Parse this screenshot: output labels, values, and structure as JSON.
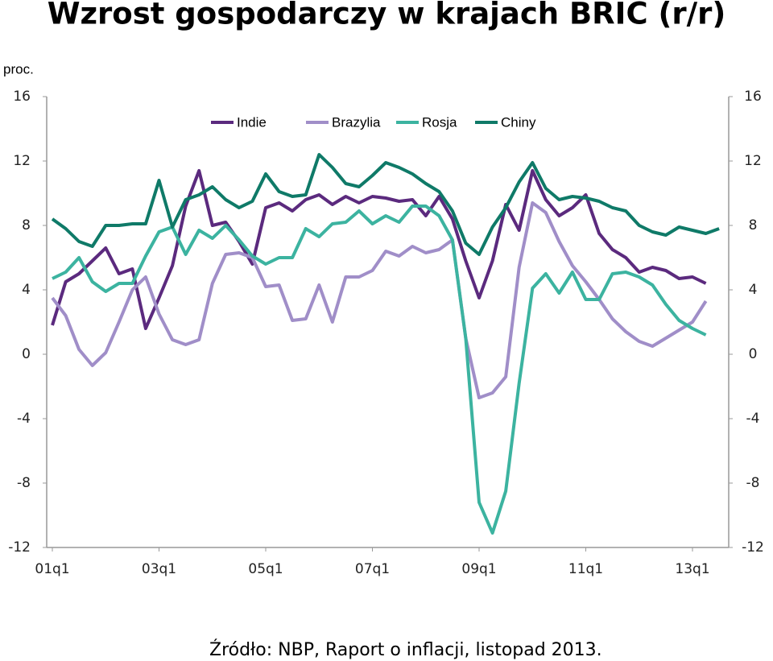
{
  "chart_data": {
    "type": "line",
    "title": "Wzrost gospodarczy w krajach BRIC (r/r)",
    "y_label": "proc.",
    "source": "Źródło: NBP, Raport o inflacji, listopad 2013.",
    "legend": "top",
    "categories": [
      "01q1",
      null,
      null,
      null,
      null,
      null,
      null,
      null,
      "03q1",
      null,
      null,
      null,
      null,
      null,
      null,
      null,
      "05q1",
      null,
      null,
      null,
      null,
      null,
      null,
      null,
      "07q1",
      null,
      null,
      null,
      null,
      null,
      null,
      null,
      "09q1",
      null,
      null,
      null,
      null,
      null,
      null,
      null,
      "11q1",
      null,
      null,
      null,
      null,
      null,
      null,
      null,
      "13q1",
      null,
      null
    ],
    "ylim": [
      -12,
      16
    ],
    "yticks": [
      -12,
      -8,
      -4,
      0,
      4,
      8,
      12,
      16
    ],
    "y2lim": [
      -12,
      16
    ],
    "y2ticks": [
      -12,
      -8,
      -4,
      0,
      4,
      8,
      12,
      16
    ],
    "series": [
      {
        "name": "Indie",
        "color": "#5b2a7e",
        "values": [
          1.8,
          4.5,
          5.0,
          5.8,
          6.6,
          5.0,
          5.3,
          1.6,
          3.5,
          5.5,
          9.2,
          11.4,
          8.0,
          8.2,
          7.0,
          5.6,
          9.1,
          9.4,
          8.9,
          9.6,
          9.9,
          9.3,
          9.8,
          9.4,
          9.8,
          9.7,
          9.5,
          9.6,
          8.6,
          9.8,
          8.4,
          5.8,
          3.5,
          5.8,
          9.3,
          7.7,
          11.4,
          9.6,
          8.6,
          9.1,
          9.9,
          7.5,
          6.5,
          6.0,
          5.1,
          5.4,
          5.2,
          4.7,
          4.8,
          4.4,
          null
        ]
      },
      {
        "name": "Brazylia",
        "color": "#a08ec8",
        "values": [
          3.5,
          2.4,
          0.3,
          -0.7,
          0.1,
          2.0,
          4.0,
          4.8,
          2.5,
          0.9,
          0.6,
          0.9,
          4.4,
          6.2,
          6.3,
          6.0,
          4.2,
          4.3,
          2.1,
          2.2,
          4.3,
          2.0,
          4.8,
          4.8,
          5.2,
          6.4,
          6.1,
          6.7,
          6.3,
          6.5,
          7.1,
          1.0,
          -2.7,
          -2.4,
          -1.4,
          5.4,
          9.4,
          8.8,
          7.0,
          5.5,
          4.5,
          3.4,
          2.2,
          1.4,
          0.8,
          0.5,
          1.0,
          1.5,
          2.0,
          3.3,
          null
        ]
      },
      {
        "name": "Rosja",
        "color": "#3cb3a0",
        "values": [
          4.7,
          5.1,
          6.0,
          4.5,
          3.9,
          4.4,
          4.4,
          6.1,
          7.6,
          7.9,
          6.2,
          7.7,
          7.2,
          8.0,
          7.1,
          6.1,
          5.6,
          6.0,
          6.0,
          7.8,
          7.3,
          8.1,
          8.2,
          8.9,
          8.1,
          8.6,
          8.2,
          9.2,
          9.2,
          8.6,
          7.1,
          1.0,
          -9.2,
          -11.1,
          -8.5,
          -1.8,
          4.1,
          5.0,
          3.8,
          5.1,
          3.4,
          3.4,
          5.0,
          5.1,
          4.8,
          4.3,
          3.1,
          2.1,
          1.6,
          1.2,
          null
        ]
      },
      {
        "name": "Chiny",
        "color": "#0f7a68",
        "values": [
          8.4,
          7.8,
          7.0,
          6.7,
          8.0,
          8.0,
          8.1,
          8.1,
          10.8,
          7.9,
          9.6,
          9.9,
          10.4,
          9.6,
          9.1,
          9.5,
          11.2,
          10.1,
          9.8,
          9.9,
          12.4,
          11.6,
          10.6,
          10.4,
          11.1,
          11.9,
          11.6,
          11.2,
          10.6,
          10.1,
          8.9,
          6.9,
          6.2,
          7.9,
          9.1,
          10.7,
          11.9,
          10.3,
          9.6,
          9.8,
          9.7,
          9.5,
          9.1,
          8.9,
          8.0,
          7.6,
          7.4,
          7.9,
          7.7,
          7.5,
          7.8
        ]
      }
    ]
  }
}
